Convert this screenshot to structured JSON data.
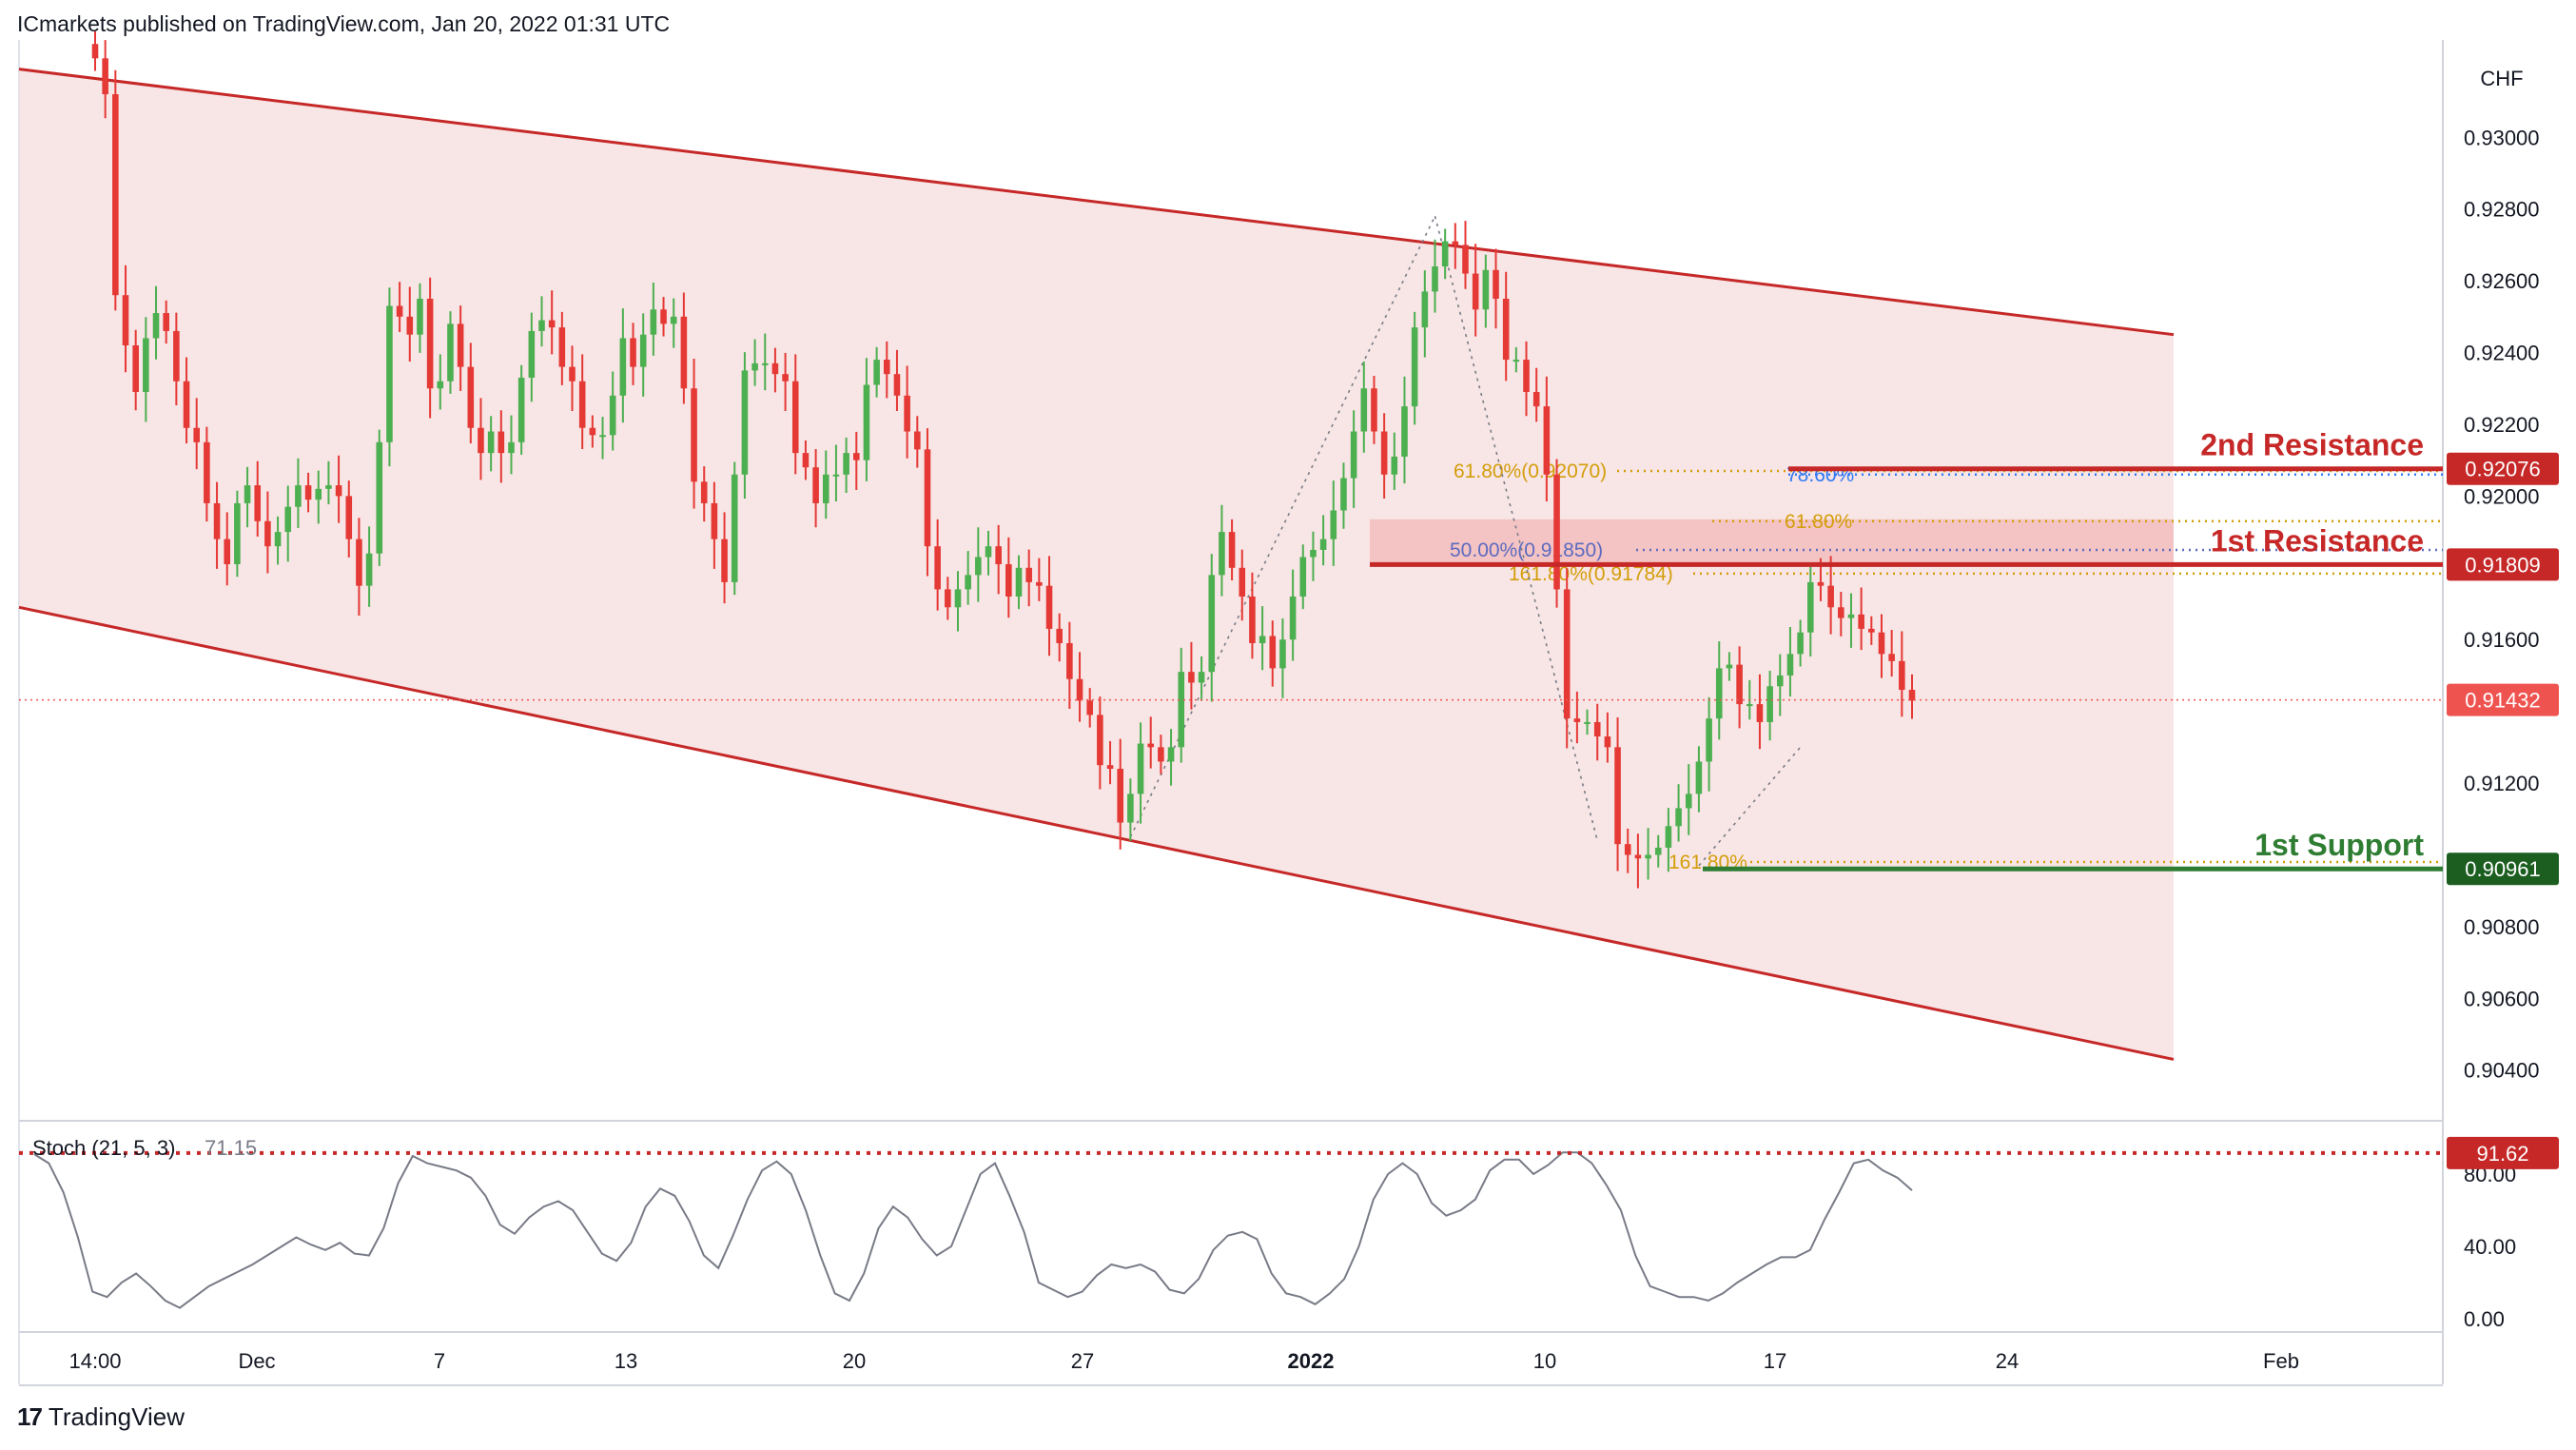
{
  "header": {
    "publisher_line": "ICmarkets published on TradingView.com, Jan 20, 2022 01:31 UTC"
  },
  "footer": {
    "logo": "17",
    "brand": "TradingView"
  },
  "chart_data": {
    "type": "candlestick",
    "currency": "CHF",
    "ylim": [
      0.9028,
      0.9325
    ],
    "y_ticks": [
      "0.93000",
      "0.92800",
      "0.92600",
      "0.92400",
      "0.92200",
      "0.92000",
      "0.91600",
      "0.91200",
      "0.90800",
      "0.90600",
      "0.90400"
    ],
    "x_ticks": [
      "14:00",
      "Dec",
      "7",
      "13",
      "20",
      "27",
      "2022",
      "10",
      "17",
      "24",
      "Feb"
    ],
    "price_badges": [
      {
        "value": "0.92076",
        "price": 0.92076,
        "color": "#c62828"
      },
      {
        "value": "0.91809",
        "price": 0.91809,
        "color": "#c62828"
      },
      {
        "value": "0.91432",
        "price": 0.91432,
        "color": "#ef5350"
      },
      {
        "value": "0.90961",
        "price": 0.90961,
        "color": "#1b5e20"
      }
    ],
    "levels": [
      {
        "label": "2nd Resistance",
        "price": 0.92076,
        "color": "#c62828"
      },
      {
        "label": "1st Resistance",
        "price": 0.91809,
        "color": "#c62828"
      },
      {
        "label": "1st Support",
        "price": 0.90961,
        "color": "#2e7d32"
      }
    ],
    "fib_labels": [
      {
        "text": "61.80%(0.92070)",
        "price": 0.9207,
        "color": "#d39e0b"
      },
      {
        "text": "78.60%",
        "price": 0.9206,
        "color": "#3179f5"
      },
      {
        "text": "61.80%",
        "price": 0.9193,
        "color": "#d39e0b"
      },
      {
        "text": "50.00%(0.91850)",
        "price": 0.9185,
        "color": "#5c6bc0"
      },
      {
        "text": "161.80%(0.91784)",
        "price": 0.91784,
        "color": "#d39e0b"
      },
      {
        "text": "161.80%",
        "price": 0.9098,
        "color": "#d39e0b"
      }
    ],
    "channel": {
      "upper": [
        [
          0.9319,
          0.9237
        ],
        [
          0.9245,
          0.9206
        ]
      ],
      "lower": [
        [
          0.9169,
          0.92
        ],
        [
          0.9043,
          0.9196
        ]
      ]
    },
    "resistance_zone": [
      0.91809,
      0.91935
    ],
    "close": [
      0.9322,
      0.9312,
      0.9256,
      0.9242,
      0.9229,
      0.9244,
      0.9251,
      0.9246,
      0.9232,
      0.9219,
      0.9215,
      0.9198,
      0.9188,
      0.9181,
      0.9198,
      0.9203,
      0.9193,
      0.9186,
      0.919,
      0.9197,
      0.9203,
      0.9199,
      0.9202,
      0.9203,
      0.92,
      0.9188,
      0.9175,
      0.9184,
      0.9215,
      0.9253,
      0.925,
      0.9245,
      0.9255,
      0.923,
      0.9232,
      0.9248,
      0.9236,
      0.9219,
      0.9212,
      0.9218,
      0.9212,
      0.9215,
      0.9233,
      0.9246,
      0.9249,
      0.9247,
      0.9236,
      0.9232,
      0.9219,
      0.9217,
      0.9217,
      0.9228,
      0.9244,
      0.9236,
      0.9245,
      0.9252,
      0.9248,
      0.925,
      0.923,
      0.9204,
      0.9198,
      0.9188,
      0.9176,
      0.9206,
      0.9235,
      0.9237,
      0.9237,
      0.9234,
      0.9232,
      0.9212,
      0.9208,
      0.9198,
      0.9206,
      0.9206,
      0.9212,
      0.921,
      0.9231,
      0.9238,
      0.9234,
      0.9228,
      0.9218,
      0.9213,
      0.9186,
      0.9174,
      0.9169,
      0.9174,
      0.9178,
      0.9183,
      0.9186,
      0.9181,
      0.9172,
      0.918,
      0.9176,
      0.9175,
      0.9163,
      0.9159,
      0.9149,
      0.9143,
      0.9139,
      0.9125,
      0.9124,
      0.9109,
      0.9117,
      0.9131,
      0.913,
      0.9126,
      0.913,
      0.9151,
      0.9148,
      0.9151,
      0.9178,
      0.919,
      0.918,
      0.9172,
      0.9159,
      0.9161,
      0.9152,
      0.916,
      0.9172,
      0.9183,
      0.9185,
      0.9188,
      0.9196,
      0.9205,
      0.9218,
      0.923,
      0.9218,
      0.9206,
      0.9211,
      0.9225,
      0.9247,
      0.9257,
      0.9264,
      0.9271,
      0.927,
      0.9262,
      0.9252,
      0.9263,
      0.9255,
      0.9238,
      0.9238,
      0.9229,
      0.9225,
      0.9206,
      0.9174,
      0.9138,
      0.9137,
      0.9137,
      0.9133,
      0.913,
      0.9103,
      0.91,
      0.9099,
      0.91,
      0.9102,
      0.9108,
      0.9113,
      0.9117,
      0.9126,
      0.9138,
      0.9152,
      0.9153,
      0.9142,
      0.9142,
      0.9137,
      0.9147,
      0.915,
      0.9156,
      0.9162,
      0.9176,
      0.9175,
      0.9169,
      0.9166,
      0.9167,
      0.9163,
      0.9162,
      0.9156,
      0.9154,
      0.9146,
      0.9143
    ],
    "stoch": {
      "label": "Stoch (21, 5, 3)",
      "value": "71.15",
      "level_badge": "91.62",
      "level": 91.62,
      "ylim": [
        0,
        100
      ],
      "y_ticks": [
        "80.00",
        "40.00",
        "0.00"
      ],
      "values": [
        91,
        86,
        70,
        45,
        15,
        12,
        20,
        25,
        18,
        10,
        6,
        12,
        18,
        22,
        26,
        30,
        35,
        40,
        45,
        41,
        38,
        42,
        36,
        35,
        50,
        75,
        90,
        86,
        84,
        82,
        78,
        68,
        52,
        47,
        56,
        62,
        65,
        60,
        48,
        36,
        32,
        42,
        62,
        72,
        68,
        54,
        35,
        28,
        46,
        66,
        82,
        87,
        80,
        60,
        35,
        14,
        10,
        25,
        50,
        62,
        56,
        44,
        35,
        40,
        60,
        80,
        86,
        68,
        48,
        20,
        16,
        12,
        15,
        24,
        30,
        28,
        30,
        26,
        16,
        14,
        22,
        38,
        46,
        48,
        44,
        25,
        14,
        12,
        8,
        14,
        22,
        40,
        66,
        80,
        86,
        80,
        64,
        57,
        60,
        66,
        82,
        88,
        88,
        80,
        85,
        92,
        92,
        86,
        74,
        60,
        35,
        18,
        15,
        12,
        12,
        10,
        14,
        20,
        25,
        30,
        34,
        34,
        38,
        55,
        70,
        86,
        88,
        82,
        78,
        71
      ]
    }
  }
}
